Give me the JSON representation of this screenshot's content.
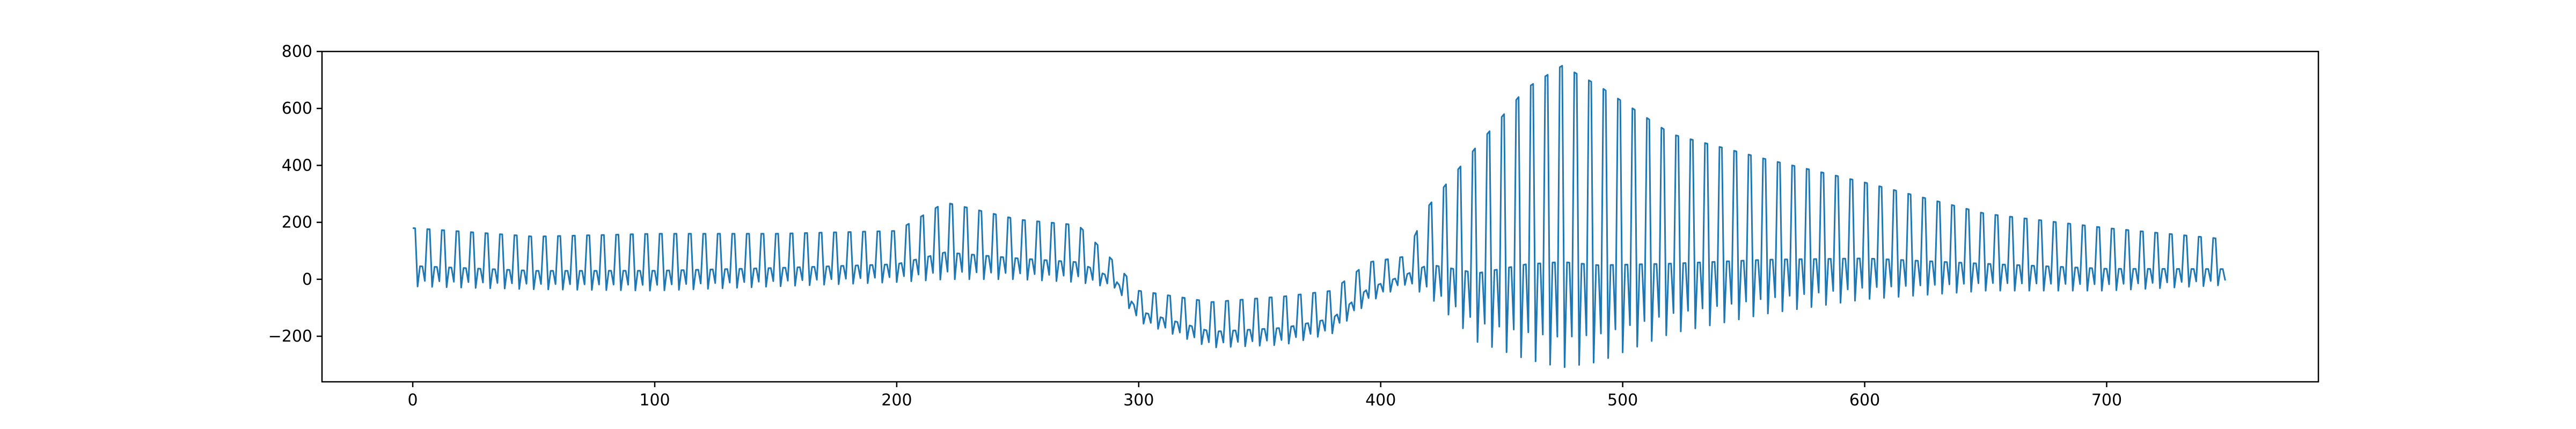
{
  "chart_data": {
    "type": "line",
    "title": "",
    "xlabel": "",
    "ylabel": "",
    "xlim": [
      -37.5,
      787.5
    ],
    "ylim": [
      -360,
      800
    ],
    "x_ticks": [
      0,
      100,
      200,
      300,
      400,
      500,
      600,
      700
    ],
    "y_ticks": [
      -200,
      0,
      200,
      400,
      600,
      800
    ],
    "x_tick_labels": [
      "0",
      "100",
      "200",
      "300",
      "400",
      "500",
      "600",
      "700"
    ],
    "y_tick_labels": [
      "−200",
      "0",
      "200",
      "400",
      "600",
      "800"
    ],
    "grid": false,
    "legend": "none",
    "series": [
      {
        "color": "#1f77b4",
        "x_start": 0,
        "x_step": 1,
        "envelope": {
          "x": [
            0,
            50,
            100,
            150,
            200,
            220,
            250,
            275,
            290,
            300,
            330,
            360,
            380,
            395,
            410,
            420,
            440,
            460,
            475,
            490,
            520,
            560,
            600,
            650,
            700,
            750
          ],
          "peak": [
            180,
            150,
            160,
            160,
            170,
            270,
            210,
            190,
            60,
            -40,
            -80,
            -60,
            -40,
            60,
            80,
            260,
            470,
            670,
            750,
            680,
            510,
            420,
            340,
            230,
            180,
            140
          ],
          "trough": [
            -25,
            -35,
            -40,
            -25,
            -10,
            0,
            0,
            -10,
            -30,
            -150,
            -240,
            -230,
            -190,
            -80,
            -20,
            -60,
            -220,
            -280,
            -310,
            -290,
            -190,
            -120,
            -70,
            -40,
            -40,
            -20
          ]
        },
        "cycle_length": 6,
        "n_points": 750
      }
    ]
  }
}
